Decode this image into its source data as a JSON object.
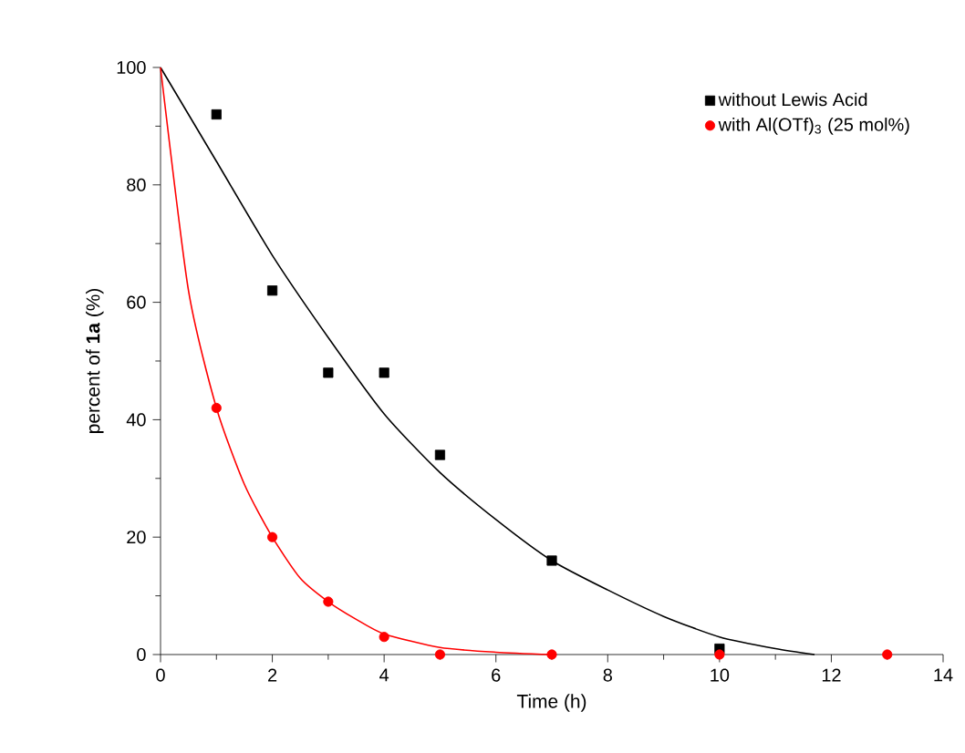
{
  "chart_data": {
    "type": "scatter",
    "xlabel": "Time (h)",
    "ylabel": "percent of **1a** (%)",
    "xlim": [
      0,
      14
    ],
    "ylim": [
      0,
      100
    ],
    "xticks": [
      0,
      2,
      4,
      6,
      8,
      10,
      12,
      14
    ],
    "yticks": [
      0,
      20,
      40,
      60,
      80,
      100
    ],
    "grid": false,
    "legend": "top right",
    "series": [
      {
        "name": "without Lewis Acid",
        "marker": "square",
        "color": "#000000",
        "x": [
          1,
          2,
          3,
          4,
          5,
          7,
          10
        ],
        "values": [
          92,
          62,
          48,
          48,
          34,
          16,
          1
        ]
      },
      {
        "name": "with Al(OTf)$_{3}$ (25 mol%)",
        "marker": "circle",
        "color": "#ff0000",
        "x": [
          1,
          2,
          3,
          4,
          5,
          7,
          10,
          13
        ],
        "values": [
          42,
          20,
          9,
          3,
          0,
          0,
          0,
          0
        ]
      },
      {
        "type": "line",
        "marker": "none",
        "color": "#000000",
        "x": [
          0,
          1,
          2,
          3,
          4,
          5,
          6,
          7,
          8,
          9,
          10,
          11,
          11.7
        ],
        "values": [
          100,
          84,
          68,
          54,
          41,
          31,
          23,
          16,
          11,
          6.5,
          3,
          1,
          0
        ]
      },
      {
        "type": "line",
        "marker": "none",
        "color": "#ff0000",
        "x": [
          0,
          0.5,
          1,
          1.5,
          2,
          2.5,
          3,
          3.5,
          4,
          5,
          6,
          7
        ],
        "values": [
          100,
          62,
          42,
          29,
          20,
          13,
          9,
          6,
          3.5,
          1.2,
          0.4,
          0
        ]
      }
    ]
  }
}
